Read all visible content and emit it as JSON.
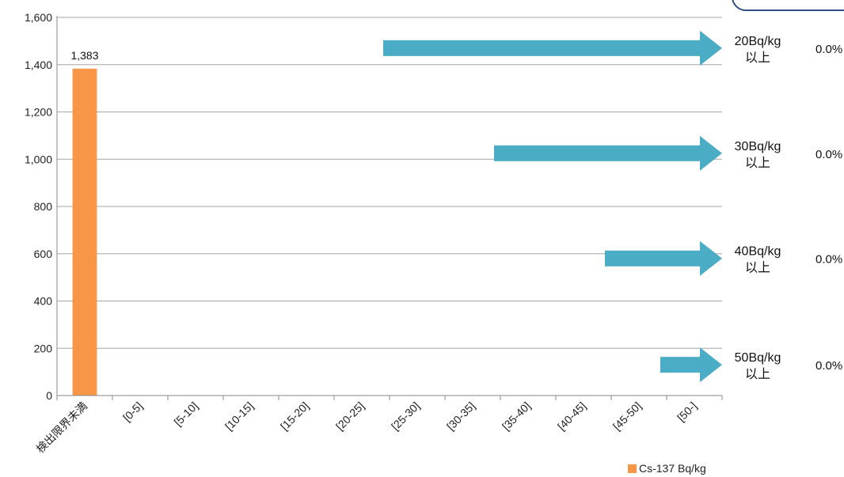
{
  "chart_data": {
    "type": "bar",
    "categories": [
      "検出限界未満",
      "[0-5]",
      "[5-10]",
      "[10-15]",
      "[15-20]",
      "[20-25]",
      "[25-30]",
      "[30-35]",
      "[35-40]",
      "[40-45]",
      "[45-50]",
      "[50-]"
    ],
    "series": [
      {
        "name": "Cs-137 Bq/kg",
        "values": [
          1383,
          0,
          0,
          0,
          0,
          0,
          0,
          0,
          0,
          0,
          0,
          0
        ],
        "color": "#f79646"
      }
    ],
    "data_labels": [
      {
        "category": "検出限界未満",
        "text": "1,383"
      }
    ],
    "ylim": [
      0,
      1600
    ],
    "yticks": [
      "0",
      "200",
      "400",
      "600",
      "800",
      "1,000",
      "1,200",
      "1,400",
      "1,600"
    ],
    "ytick_values": [
      0,
      200,
      400,
      600,
      800,
      1000,
      1200,
      1400,
      1600
    ],
    "grid": true,
    "legend": {
      "position": "bottom-right",
      "label": "Cs-137 Bq/kg"
    },
    "annotations": [
      {
        "from_category": "[20-25]",
        "line1": "20Bq/kg",
        "line2": "以上",
        "percent": "0.0%",
        "y": 1470
      },
      {
        "from_category": "[30-35]",
        "line1": "30Bq/kg",
        "line2": "以上",
        "percent": "0.0%",
        "y": 1025
      },
      {
        "from_category": "[40-45]",
        "line1": "40Bq/kg",
        "line2": "以上",
        "percent": "0.0%",
        "y": 580
      },
      {
        "from_category": "[45-50]",
        "line1": "50Bq/kg",
        "line2": "以上",
        "percent": "0.0%",
        "y": 130
      }
    ],
    "arrow_color": "#4bacc6"
  }
}
